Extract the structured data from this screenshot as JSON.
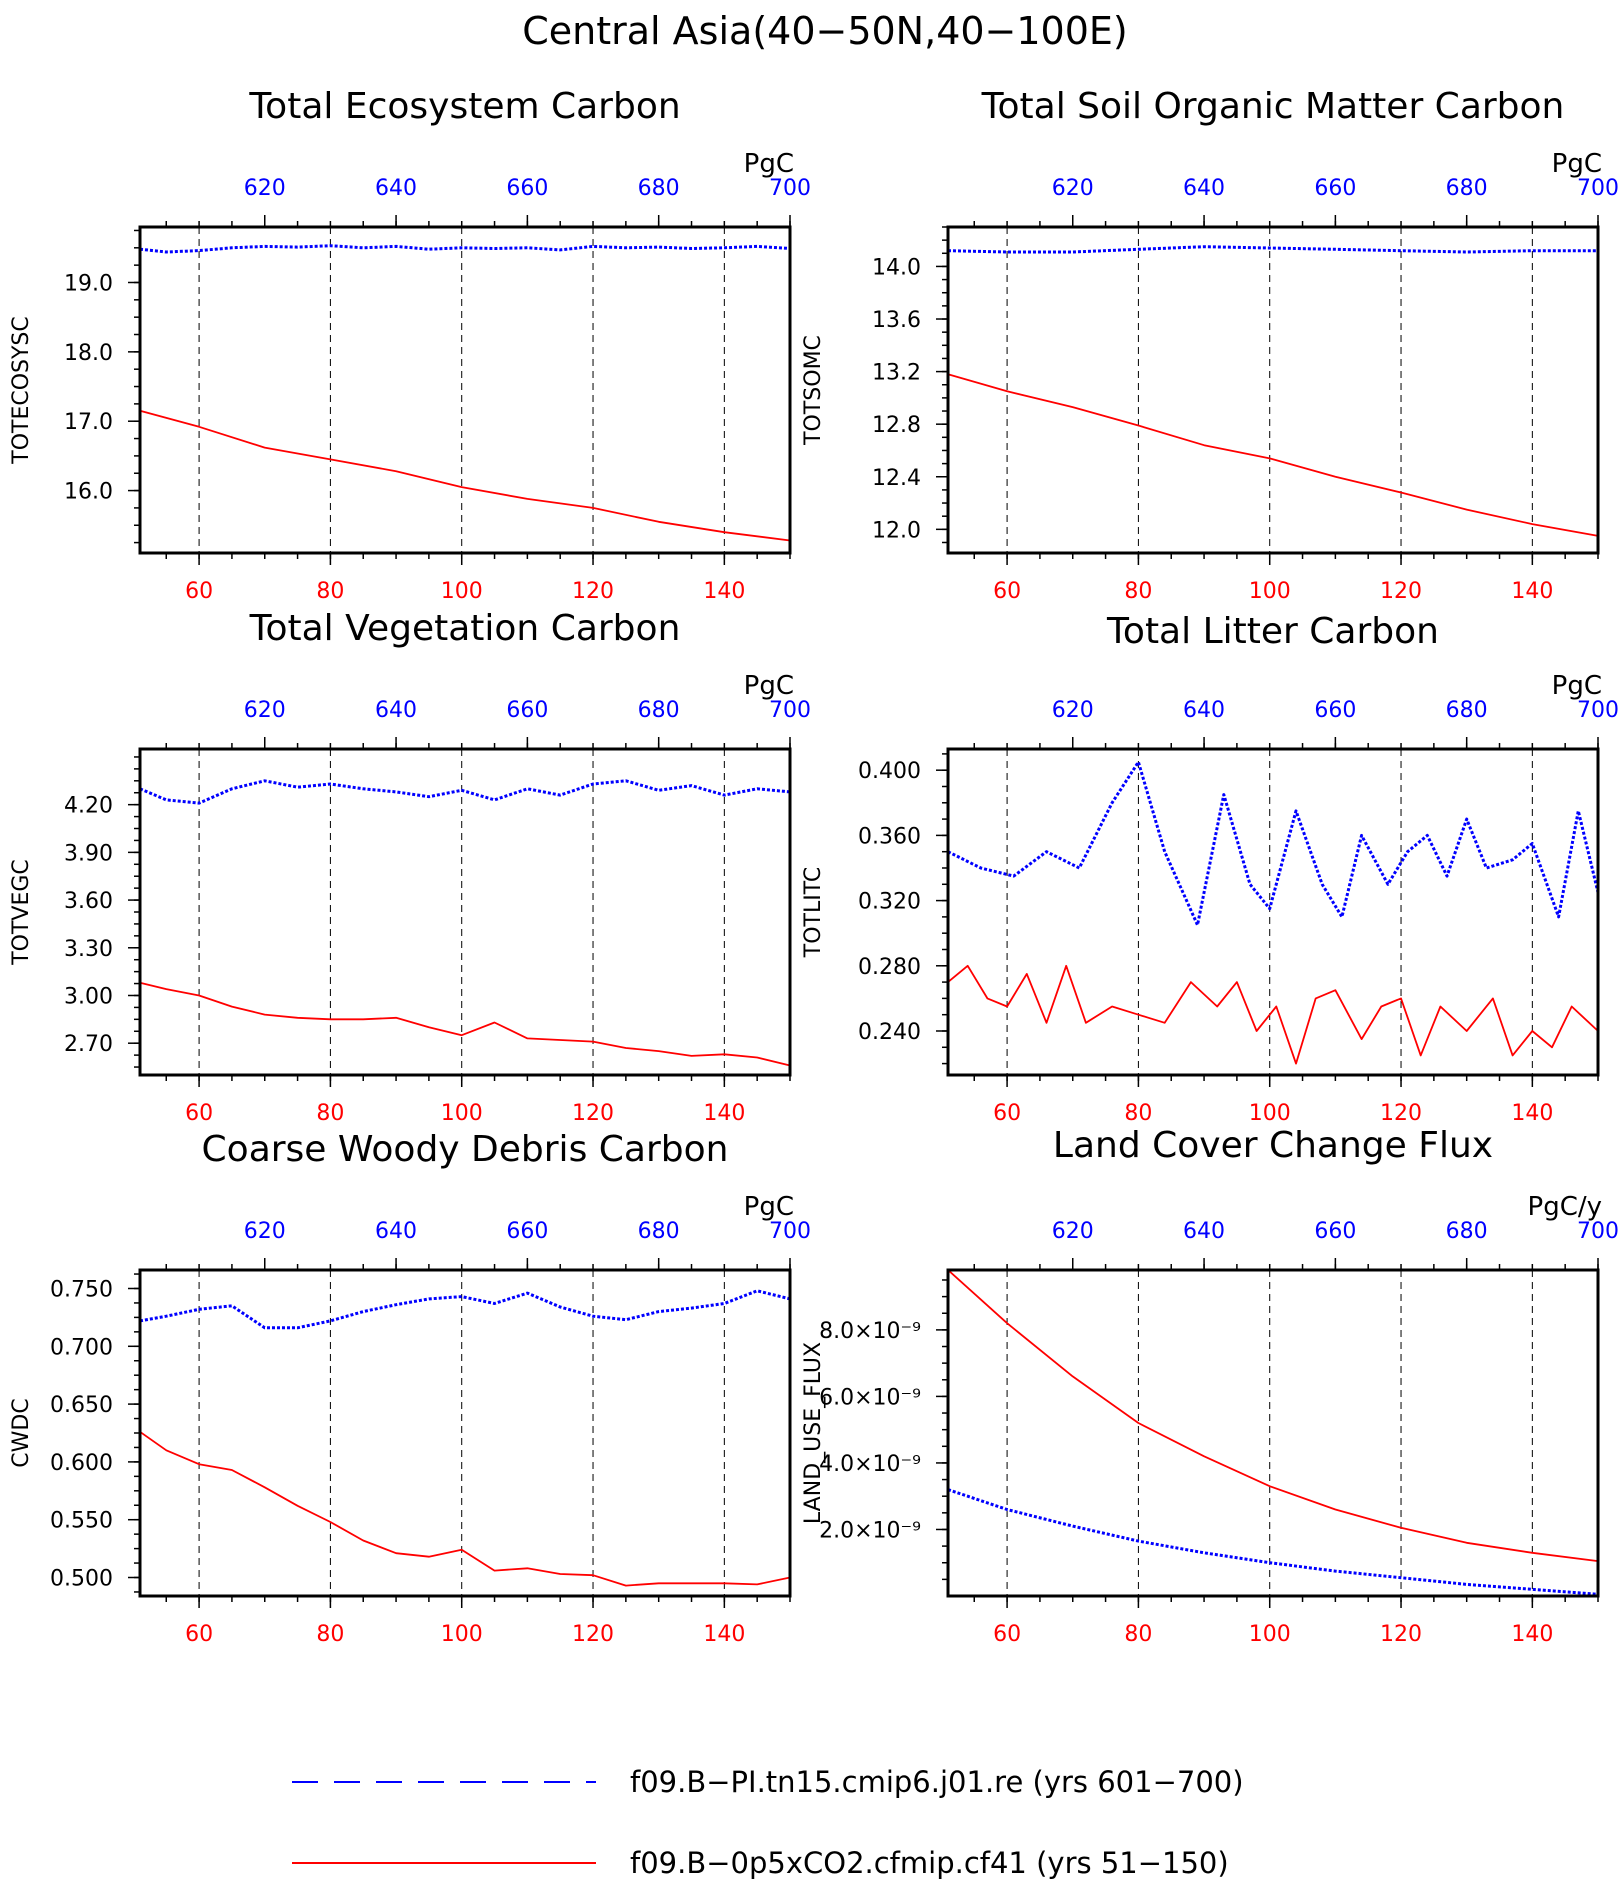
{
  "title": "Central Asia(40−50N,40−100E)",
  "colors": {
    "control": "#0000ff",
    "experiment": "#ff0000",
    "axis": "#000000"
  },
  "legend": [
    {
      "label": "f09.B−PI.tn15.cmip6.j01.re (yrs 601−700)",
      "color": "#0000ff",
      "style": "dashed"
    },
    {
      "label": "f09.B−0p5xCO2.cfmip.cf41 (yrs 51−150)",
      "color": "#ff0000",
      "style": "solid"
    }
  ],
  "chart_data": [
    {
      "type": "line",
      "title": "Total Ecosystem Carbon",
      "ylabel": "TOTECOSYSC",
      "unit": "PgC",
      "x_bottom": [
        51,
        150
      ],
      "x_bottom_ticks": [
        60,
        80,
        100,
        120,
        140
      ],
      "x_top": [
        601,
        700
      ],
      "x_top_ticks": [
        620,
        640,
        660,
        680,
        700
      ],
      "ylim": [
        15.1,
        19.8
      ],
      "yticks": [
        16.0,
        17.0,
        18.0,
        19.0
      ],
      "ytick_labels": [
        "16.0",
        "17.0",
        "18.0",
        "19.0"
      ],
      "ydecimals": 1,
      "grid": "vertical dashed",
      "series": [
        {
          "name": "f09.B−PI.tn15.cmip6.j01.re (yrs 601−700)",
          "color": "#0000ff",
          "style": "dashed",
          "axis": "top",
          "x": [
            601,
            605,
            610,
            615,
            620,
            625,
            630,
            635,
            640,
            645,
            650,
            655,
            660,
            665,
            670,
            675,
            680,
            685,
            690,
            695,
            700
          ],
          "y": [
            19.48,
            19.44,
            19.46,
            19.5,
            19.52,
            19.51,
            19.53,
            19.5,
            19.52,
            19.48,
            19.5,
            19.49,
            19.5,
            19.47,
            19.52,
            19.5,
            19.51,
            19.49,
            19.5,
            19.52,
            19.49
          ]
        },
        {
          "name": "f09.B−0p5xCO2.cfmip.cf41 (yrs 51−150)",
          "color": "#ff0000",
          "style": "solid",
          "axis": "bottom",
          "x": [
            51,
            60,
            70,
            80,
            90,
            100,
            110,
            120,
            130,
            140,
            150
          ],
          "y": [
            17.15,
            16.92,
            16.62,
            16.45,
            16.28,
            16.05,
            15.88,
            15.75,
            15.55,
            15.4,
            15.28
          ]
        }
      ]
    },
    {
      "type": "line",
      "title": "Total Soil Organic Matter Carbon",
      "ylabel": "TOTSOMC",
      "unit": "PgC",
      "x_bottom": [
        51,
        150
      ],
      "x_bottom_ticks": [
        60,
        80,
        100,
        120,
        140
      ],
      "x_top": [
        601,
        700
      ],
      "x_top_ticks": [
        620,
        640,
        660,
        680,
        700
      ],
      "ylim": [
        11.82,
        14.3
      ],
      "yticks": [
        12.0,
        12.4,
        12.8,
        13.2,
        13.6,
        14.0
      ],
      "ytick_labels": [
        "12.0",
        "12.4",
        "12.8",
        "13.2",
        "13.6",
        "14.0"
      ],
      "ydecimals": 1,
      "grid": "vertical dashed",
      "series": [
        {
          "name": "f09.B−PI.tn15.cmip6.j01.re (yrs 601−700)",
          "color": "#0000ff",
          "style": "dashed",
          "axis": "top",
          "x": [
            601,
            610,
            620,
            630,
            640,
            650,
            660,
            670,
            680,
            690,
            700
          ],
          "y": [
            14.12,
            14.11,
            14.11,
            14.13,
            14.15,
            14.14,
            14.13,
            14.12,
            14.11,
            14.12,
            14.12
          ]
        },
        {
          "name": "f09.B−0p5xCO2.cfmip.cf41 (yrs 51−150)",
          "color": "#ff0000",
          "style": "solid",
          "axis": "bottom",
          "x": [
            51,
            60,
            70,
            80,
            90,
            100,
            110,
            120,
            130,
            140,
            150
          ],
          "y": [
            13.18,
            13.05,
            12.93,
            12.79,
            12.64,
            12.54,
            12.4,
            12.28,
            12.15,
            12.04,
            11.95
          ]
        }
      ]
    },
    {
      "type": "line",
      "title": "Total Vegetation Carbon",
      "ylabel": "TOTVEGC",
      "unit": "PgC",
      "x_bottom": [
        51,
        150
      ],
      "x_bottom_ticks": [
        60,
        80,
        100,
        120,
        140
      ],
      "x_top": [
        601,
        700
      ],
      "x_top_ticks": [
        620,
        640,
        660,
        680,
        700
      ],
      "ylim": [
        2.5,
        4.55
      ],
      "yticks": [
        2.7,
        3.0,
        3.3,
        3.6,
        3.9,
        4.2
      ],
      "ytick_labels": [
        "2.70",
        "3.00",
        "3.30",
        "3.60",
        "3.90",
        "4.20"
      ],
      "ydecimals": 2,
      "grid": "vertical dashed",
      "series": [
        {
          "name": "f09.B−PI.tn15.cmip6.j01.re (yrs 601−700)",
          "color": "#0000ff",
          "style": "dashed",
          "axis": "top",
          "x": [
            601,
            605,
            610,
            615,
            620,
            625,
            630,
            635,
            640,
            645,
            650,
            655,
            660,
            665,
            670,
            675,
            680,
            685,
            690,
            695,
            700
          ],
          "y": [
            4.3,
            4.23,
            4.21,
            4.3,
            4.35,
            4.31,
            4.33,
            4.3,
            4.28,
            4.25,
            4.29,
            4.23,
            4.3,
            4.26,
            4.33,
            4.35,
            4.29,
            4.32,
            4.26,
            4.3,
            4.28
          ]
        },
        {
          "name": "f09.B−0p5xCO2.cfmip.cf41 (yrs 51−150)",
          "color": "#ff0000",
          "style": "solid",
          "axis": "bottom",
          "x": [
            51,
            55,
            60,
            65,
            70,
            75,
            80,
            85,
            90,
            95,
            100,
            105,
            110,
            115,
            120,
            125,
            130,
            135,
            140,
            145,
            150
          ],
          "y": [
            3.08,
            3.04,
            3.0,
            2.93,
            2.88,
            2.86,
            2.85,
            2.85,
            2.86,
            2.8,
            2.75,
            2.83,
            2.73,
            2.72,
            2.71,
            2.67,
            2.65,
            2.62,
            2.63,
            2.61,
            2.56
          ]
        }
      ]
    },
    {
      "type": "line",
      "title": "Total Litter Carbon",
      "ylabel": "TOTLITC",
      "unit": "PgC",
      "x_bottom": [
        51,
        150
      ],
      "x_bottom_ticks": [
        60,
        80,
        100,
        120,
        140
      ],
      "x_top": [
        601,
        700
      ],
      "x_top_ticks": [
        620,
        640,
        660,
        680,
        700
      ],
      "ylim": [
        0.213,
        0.413
      ],
      "yticks": [
        0.24,
        0.28,
        0.32,
        0.36,
        0.4
      ],
      "ytick_labels": [
        "0.240",
        "0.280",
        "0.320",
        "0.360",
        "0.400"
      ],
      "ydecimals": 3,
      "grid": "vertical dashed",
      "series": [
        {
          "name": "f09.B−PI.tn15.cmip6.j01.re (yrs 601−700)",
          "color": "#0000ff",
          "style": "dashed",
          "axis": "top",
          "x": [
            601,
            606,
            611,
            616,
            621,
            626,
            630,
            634,
            639,
            643,
            647,
            650,
            654,
            658,
            661,
            664,
            668,
            671,
            674,
            677,
            680,
            683,
            687,
            690,
            694,
            697,
            700
          ],
          "y": [
            0.35,
            0.34,
            0.335,
            0.35,
            0.34,
            0.38,
            0.405,
            0.35,
            0.305,
            0.385,
            0.33,
            0.315,
            0.375,
            0.33,
            0.31,
            0.36,
            0.33,
            0.35,
            0.36,
            0.335,
            0.37,
            0.34,
            0.345,
            0.355,
            0.31,
            0.375,
            0.325
          ]
        },
        {
          "name": "f09.B−0p5xCO2.cfmip.cf41 (yrs 51−150)",
          "color": "#ff0000",
          "style": "solid",
          "axis": "bottom",
          "x": [
            51,
            54,
            57,
            60,
            63,
            66,
            69,
            72,
            76,
            80,
            84,
            88,
            92,
            95,
            98,
            101,
            104,
            107,
            110,
            114,
            117,
            120,
            123,
            126,
            130,
            134,
            137,
            140,
            143,
            146,
            150
          ],
          "y": [
            0.27,
            0.28,
            0.26,
            0.255,
            0.275,
            0.245,
            0.28,
            0.245,
            0.255,
            0.25,
            0.245,
            0.27,
            0.255,
            0.27,
            0.24,
            0.255,
            0.22,
            0.26,
            0.265,
            0.235,
            0.255,
            0.26,
            0.225,
            0.255,
            0.24,
            0.26,
            0.225,
            0.24,
            0.23,
            0.255,
            0.24
          ]
        }
      ]
    },
    {
      "type": "line",
      "title": "Coarse Woody Debris Carbon",
      "ylabel": "CWDC",
      "unit": "PgC",
      "x_bottom": [
        51,
        150
      ],
      "x_bottom_ticks": [
        60,
        80,
        100,
        120,
        140
      ],
      "x_top": [
        601,
        700
      ],
      "x_top_ticks": [
        620,
        640,
        660,
        680,
        700
      ],
      "ylim": [
        0.484,
        0.766
      ],
      "yticks": [
        0.5,
        0.55,
        0.6,
        0.65,
        0.7,
        0.75
      ],
      "ytick_labels": [
        "0.500",
        "0.550",
        "0.600",
        "0.650",
        "0.700",
        "0.750"
      ],
      "ydecimals": 3,
      "grid": "vertical dashed",
      "series": [
        {
          "name": "f09.B−PI.tn15.cmip6.j01.re (yrs 601−700)",
          "color": "#0000ff",
          "style": "dashed",
          "axis": "top",
          "x": [
            601,
            605,
            610,
            615,
            620,
            625,
            630,
            635,
            640,
            645,
            650,
            655,
            660,
            665,
            670,
            675,
            680,
            685,
            690,
            695,
            700
          ],
          "y": [
            0.722,
            0.726,
            0.732,
            0.735,
            0.716,
            0.716,
            0.722,
            0.73,
            0.736,
            0.741,
            0.743,
            0.737,
            0.746,
            0.734,
            0.726,
            0.723,
            0.73,
            0.733,
            0.737,
            0.748,
            0.741
          ]
        },
        {
          "name": "f09.B−0p5xCO2.cfmip.cf41 (yrs 51−150)",
          "color": "#ff0000",
          "style": "solid",
          "axis": "bottom",
          "x": [
            51,
            55,
            60,
            65,
            70,
            75,
            80,
            85,
            90,
            95,
            100,
            105,
            110,
            115,
            120,
            125,
            130,
            135,
            140,
            145,
            150
          ],
          "y": [
            0.626,
            0.61,
            0.598,
            0.593,
            0.578,
            0.562,
            0.548,
            0.532,
            0.521,
            0.518,
            0.524,
            0.506,
            0.508,
            0.503,
            0.502,
            0.493,
            0.495,
            0.495,
            0.495,
            0.494,
            0.5
          ]
        }
      ]
    },
    {
      "type": "line",
      "title": "Land Cover Change Flux",
      "ylabel": "LAND_USE_FLUX",
      "unit": "PgC/y",
      "x_bottom": [
        51,
        150
      ],
      "x_bottom_ticks": [
        60,
        80,
        100,
        120,
        140
      ],
      "x_top": [
        601,
        700
      ],
      "x_top_ticks": [
        620,
        640,
        660,
        680,
        700
      ],
      "ylim": [
        0.0,
        9.8e-09
      ],
      "yticks": [
        2e-09,
        4e-09,
        6e-09,
        8e-09
      ],
      "ytick_labels": [
        "2.0×10⁻⁹",
        "4.0×10⁻⁹",
        "6.0×10⁻⁹",
        "8.0×10⁻⁹"
      ],
      "ydecimals": 11,
      "grid": "vertical dashed",
      "series": [
        {
          "name": "f09.B−PI.tn15.cmip6.j01.re (yrs 601−700)",
          "color": "#0000ff",
          "style": "dashed",
          "axis": "top",
          "x": [
            601,
            610,
            620,
            630,
            640,
            650,
            660,
            670,
            680,
            690,
            700
          ],
          "y": [
            3.2e-09,
            2.6e-09,
            2.1e-09,
            1.65e-09,
            1.3e-09,
            1e-09,
            7.5e-10,
            5.5e-10,
            3.5e-10,
            2e-10,
            5e-11
          ]
        },
        {
          "name": "f09.B−0p5xCO2.cfmip.cf41 (yrs 51−150)",
          "color": "#ff0000",
          "style": "solid",
          "axis": "bottom",
          "x": [
            51,
            60,
            70,
            80,
            90,
            100,
            110,
            120,
            130,
            140,
            150
          ],
          "y": [
            9.8e-09,
            8.2e-09,
            6.6e-09,
            5.2e-09,
            4.2e-09,
            3.3e-09,
            2.6e-09,
            2.05e-09,
            1.6e-09,
            1.3e-09,
            1.05e-09
          ]
        }
      ]
    }
  ]
}
